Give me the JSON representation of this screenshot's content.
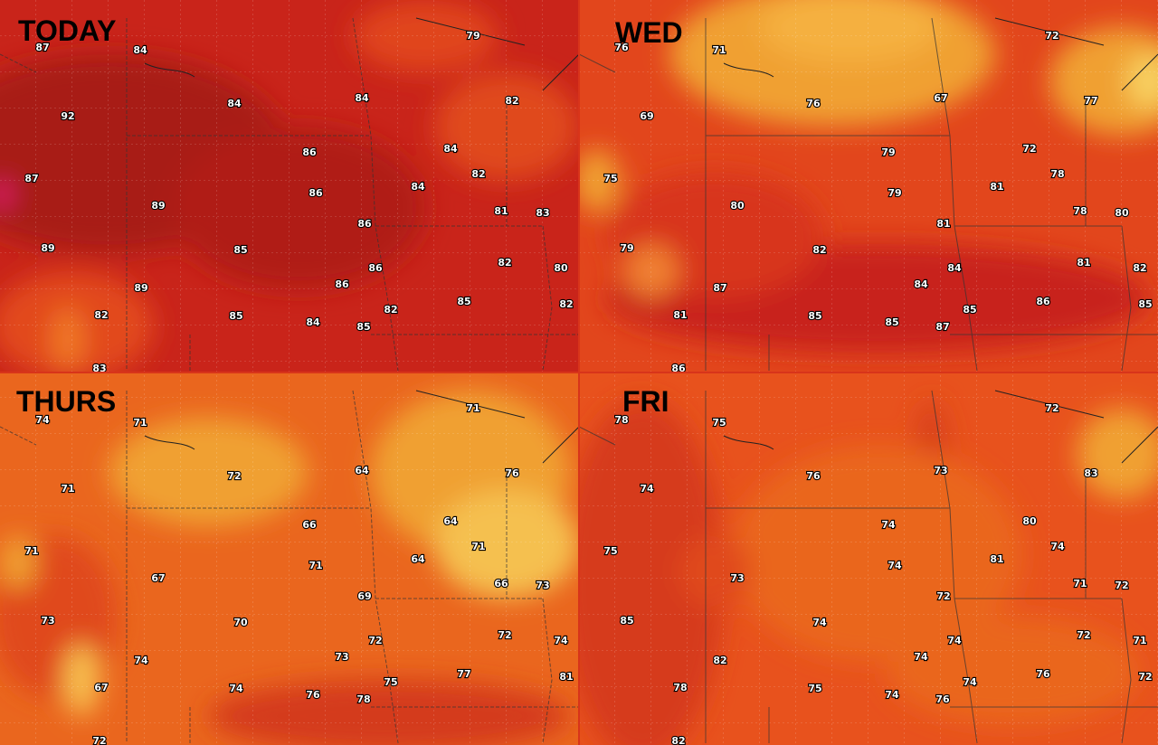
{
  "panels": [
    {
      "title": "TODAY",
      "temps": [
        87,
        84,
        79,
        92,
        84,
        84,
        82,
        87,
        86,
        84,
        82,
        89,
        86,
        84,
        81,
        83,
        86,
        89,
        85,
        82,
        80,
        89,
        86,
        86,
        82,
        85,
        84,
        85,
        82,
        85,
        82,
        83
      ]
    },
    {
      "title": "WED",
      "temps": [
        76,
        71,
        72,
        69,
        76,
        67,
        77,
        75,
        79,
        72,
        78,
        80,
        79,
        81,
        78,
        80,
        81,
        79,
        82,
        81,
        82,
        87,
        84,
        84,
        81,
        85,
        85,
        87,
        85,
        86,
        85,
        86
      ]
    },
    {
      "title": "THURS",
      "temps": [
        74,
        71,
        71,
        71,
        72,
        64,
        76,
        71,
        66,
        64,
        71,
        67,
        71,
        64,
        66,
        73,
        69,
        73,
        70,
        72,
        74,
        74,
        73,
        72,
        67,
        74,
        76,
        78,
        75,
        77,
        81,
        72
      ]
    },
    {
      "title": "FRI",
      "temps": [
        78,
        75,
        72,
        74,
        76,
        73,
        83,
        75,
        74,
        80,
        74,
        73,
        74,
        81,
        71,
        72,
        72,
        85,
        74,
        72,
        71,
        82,
        74,
        74,
        78,
        75,
        74,
        76,
        74,
        76,
        72,
        82
      ]
    }
  ]
}
